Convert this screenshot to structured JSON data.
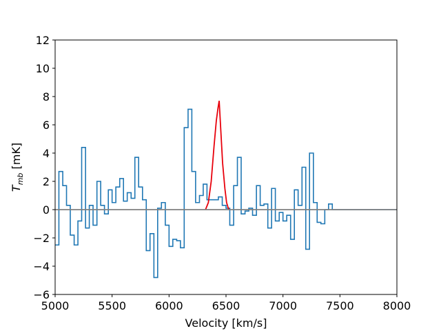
{
  "chart_data": {
    "type": "line",
    "xlabel": "Velocity [km/s]",
    "ylabel_main": "T",
    "ylabel_sub": "mb",
    "ylabel_unit": " [mK]",
    "xlim": [
      5000,
      8000
    ],
    "ylim": [
      -6,
      12
    ],
    "xticks": [
      5000,
      5500,
      6000,
      6500,
      7000,
      7500,
      8000
    ],
    "yticks": [
      -6,
      -4,
      -2,
      0,
      2,
      4,
      6,
      8,
      10,
      12
    ],
    "grid": false,
    "legend": "none",
    "series": [
      {
        "kind": "step",
        "color": "#1f77b4",
        "x": [
          5000,
          5033,
          5067,
          5100,
          5133,
          5167,
          5200,
          5233,
          5267,
          5300,
          5333,
          5367,
          5400,
          5433,
          5467,
          5500,
          5533,
          5567,
          5600,
          5633,
          5667,
          5700,
          5733,
          5767,
          5800,
          5833,
          5867,
          5900,
          5933,
          5967,
          6000,
          6033,
          6067,
          6100,
          6133,
          6167,
          6200,
          6233,
          6267,
          6300,
          6333,
          6367,
          6400,
          6433,
          6467,
          6500,
          6533,
          6567,
          6600,
          6633,
          6667,
          6700,
          6733,
          6767,
          6800,
          6833,
          6867,
          6900,
          6933,
          6967,
          7000,
          7033,
          7067,
          7100,
          7133,
          7167,
          7200,
          7233,
          7267,
          7300,
          7333,
          7367,
          7400,
          7433,
          7467,
          7500,
          7533,
          7567,
          7600,
          7633,
          7667,
          7700,
          7733,
          7767,
          7800,
          7833,
          7867,
          7900,
          7933,
          7967
        ],
        "y": [
          -2.5,
          2.7,
          1.7,
          0.3,
          -1.8,
          -2.5,
          -0.8,
          4.4,
          -1.3,
          0.3,
          -1.1,
          2.0,
          0.3,
          -0.3,
          1.4,
          0.5,
          1.6,
          2.2,
          0.6,
          1.2,
          0.8,
          3.7,
          1.6,
          0.7,
          -2.9,
          -1.7,
          -4.8,
          0.1,
          0.5,
          -1.1,
          -2.6,
          -2.1,
          -2.2,
          -2.7,
          5.8,
          7.1,
          2.7,
          0.5,
          1.0,
          1.8,
          0.7,
          0.7,
          0.7,
          0.9,
          0.3,
          0.1,
          -1.1,
          1.7,
          3.7,
          -0.3,
          -0.1,
          0.1,
          -0.4,
          1.7,
          0.3,
          0.4,
          -1.3,
          1.5,
          -0.8,
          -0.2,
          -0.8,
          -0.4,
          -2.1,
          1.4,
          0.3,
          3.0,
          -2.8,
          4.0,
          0.5,
          -0.9,
          -1.0,
          0.0,
          0.4,
          0.0,
          0.0,
          0.0,
          0.0,
          0.0,
          0.0,
          0.0,
          0.0,
          0.0,
          0.0,
          0.0,
          0.0,
          0.0,
          0.0,
          0.0,
          0.0,
          0.0
        ]
      },
      {
        "kind": "line",
        "color": "#e8000b",
        "x": [
          6320,
          6345,
          6370,
          6395,
          6415,
          6430,
          6440,
          6455,
          6470,
          6490,
          6505,
          6520,
          6530
        ],
        "y": [
          0.0,
          0.5,
          2.0,
          4.5,
          6.3,
          7.2,
          7.7,
          5.5,
          3.3,
          1.5,
          0.5,
          0.1,
          0.0
        ]
      },
      {
        "kind": "hline",
        "color": "#7f7f7f",
        "y": 0
      }
    ]
  }
}
